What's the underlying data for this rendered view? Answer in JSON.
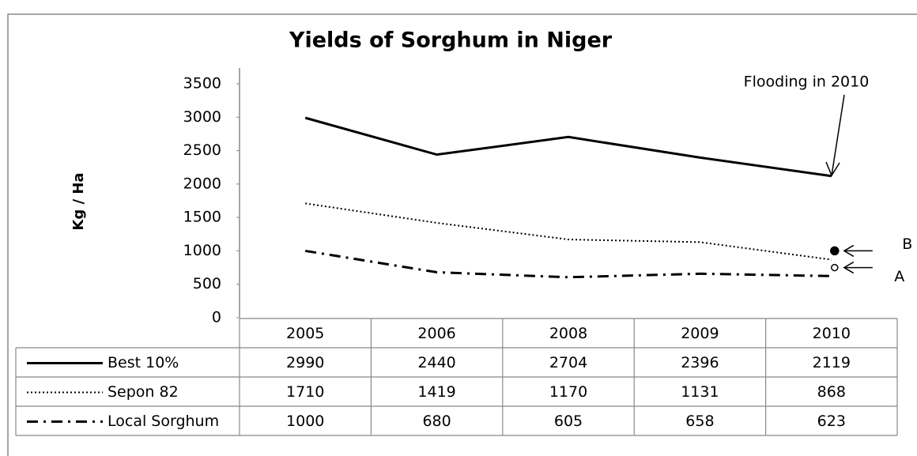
{
  "chart_data": {
    "type": "line",
    "title": "Yields of Sorghum in Niger",
    "y_label": "Kg / Ha",
    "categories": [
      "2005",
      "2006",
      "2008",
      "2009",
      "2010"
    ],
    "series": [
      {
        "name": "Best 10%",
        "color": "#000000",
        "style": "solid",
        "values": [
          2990,
          2440,
          2704,
          2396,
          2119
        ]
      },
      {
        "name": "Sepon 82",
        "color": "#000000",
        "style": "dotted",
        "values": [
          1710,
          1419,
          1170,
          1131,
          868
        ]
      },
      {
        "name": "Local Sorghum",
        "color": "#000000",
        "style": "dashdot",
        "values": [
          1000,
          680,
          605,
          658,
          623
        ]
      }
    ],
    "ylim": [
      0,
      3500
    ],
    "yticks": [
      0,
      500,
      1000,
      1500,
      2000,
      2500,
      3000,
      3500
    ],
    "grid": false,
    "annotation": "Flooding in 2010",
    "markers": [
      {
        "label": "B",
        "value": 1000,
        "filled": true
      },
      {
        "label": "A",
        "value": 750,
        "filled": false
      }
    ]
  }
}
